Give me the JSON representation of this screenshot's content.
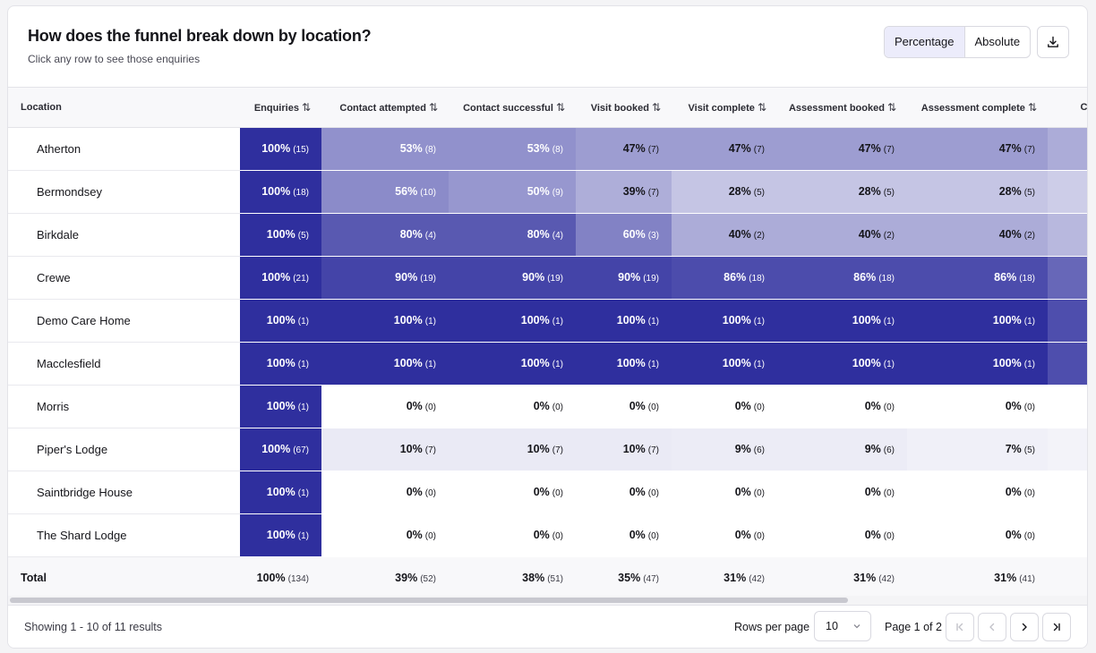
{
  "header": {
    "title": "How does the funnel break down by location?",
    "subtitle": "Click any row to see those enquiries",
    "toggle": {
      "percentage": "Percentage",
      "absolute": "Absolute",
      "active": "percentage"
    },
    "download_icon": "download-icon"
  },
  "table": {
    "columns": [
      "Location",
      "Enquiries",
      "Contact attempted",
      "Contact successful",
      "Visit booked",
      "Visit complete",
      "Assessment booked",
      "Assessment complete",
      "Contra"
    ],
    "sort_icon": "⇅",
    "rows": [
      {
        "location": "Atherton",
        "cells": [
          [
            "100%",
            "(15)"
          ],
          [
            "53%",
            "(8)"
          ],
          [
            "53%",
            "(8)"
          ],
          [
            "47%",
            "(7)"
          ],
          [
            "47%",
            "(7)"
          ],
          [
            "47%",
            "(7)"
          ],
          [
            "47%",
            "(7)"
          ]
        ]
      },
      {
        "location": "Bermondsey",
        "cells": [
          [
            "100%",
            "(18)"
          ],
          [
            "56%",
            "(10)"
          ],
          [
            "50%",
            "(9)"
          ],
          [
            "39%",
            "(7)"
          ],
          [
            "28%",
            "(5)"
          ],
          [
            "28%",
            "(5)"
          ],
          [
            "28%",
            "(5)"
          ]
        ]
      },
      {
        "location": "Birkdale",
        "cells": [
          [
            "100%",
            "(5)"
          ],
          [
            "80%",
            "(4)"
          ],
          [
            "80%",
            "(4)"
          ],
          [
            "60%",
            "(3)"
          ],
          [
            "40%",
            "(2)"
          ],
          [
            "40%",
            "(2)"
          ],
          [
            "40%",
            "(2)"
          ]
        ]
      },
      {
        "location": "Crewe",
        "cells": [
          [
            "100%",
            "(21)"
          ],
          [
            "90%",
            "(19)"
          ],
          [
            "90%",
            "(19)"
          ],
          [
            "90%",
            "(19)"
          ],
          [
            "86%",
            "(18)"
          ],
          [
            "86%",
            "(18)"
          ],
          [
            "86%",
            "(18)"
          ]
        ]
      },
      {
        "location": "Demo Care Home",
        "cells": [
          [
            "100%",
            "(1)"
          ],
          [
            "100%",
            "(1)"
          ],
          [
            "100%",
            "(1)"
          ],
          [
            "100%",
            "(1)"
          ],
          [
            "100%",
            "(1)"
          ],
          [
            "100%",
            "(1)"
          ],
          [
            "100%",
            "(1)"
          ]
        ]
      },
      {
        "location": "Macclesfield",
        "cells": [
          [
            "100%",
            "(1)"
          ],
          [
            "100%",
            "(1)"
          ],
          [
            "100%",
            "(1)"
          ],
          [
            "100%",
            "(1)"
          ],
          [
            "100%",
            "(1)"
          ],
          [
            "100%",
            "(1)"
          ],
          [
            "100%",
            "(1)"
          ]
        ]
      },
      {
        "location": "Morris",
        "cells": [
          [
            "100%",
            "(1)"
          ],
          [
            "0%",
            "(0)"
          ],
          [
            "0%",
            "(0)"
          ],
          [
            "0%",
            "(0)"
          ],
          [
            "0%",
            "(0)"
          ],
          [
            "0%",
            "(0)"
          ],
          [
            "0%",
            "(0)"
          ]
        ]
      },
      {
        "location": "Piper's Lodge",
        "cells": [
          [
            "100%",
            "(67)"
          ],
          [
            "10%",
            "(7)"
          ],
          [
            "10%",
            "(7)"
          ],
          [
            "10%",
            "(7)"
          ],
          [
            "9%",
            "(6)"
          ],
          [
            "9%",
            "(6)"
          ],
          [
            "7%",
            "(5)"
          ]
        ]
      },
      {
        "location": "Saintbridge House",
        "cells": [
          [
            "100%",
            "(1)"
          ],
          [
            "0%",
            "(0)"
          ],
          [
            "0%",
            "(0)"
          ],
          [
            "0%",
            "(0)"
          ],
          [
            "0%",
            "(0)"
          ],
          [
            "0%",
            "(0)"
          ],
          [
            "0%",
            "(0)"
          ]
        ]
      },
      {
        "location": "The Shard Lodge",
        "cells": [
          [
            "100%",
            "(1)"
          ],
          [
            "0%",
            "(0)"
          ],
          [
            "0%",
            "(0)"
          ],
          [
            "0%",
            "(0)"
          ],
          [
            "0%",
            "(0)"
          ],
          [
            "0%",
            "(0)"
          ],
          [
            "0%",
            "(0)"
          ]
        ]
      }
    ],
    "total": {
      "label": "Total",
      "cells": [
        [
          "100%",
          "(134)"
        ],
        [
          "39%",
          "(52)"
        ],
        [
          "38%",
          "(51)"
        ],
        [
          "35%",
          "(47)"
        ],
        [
          "31%",
          "(42)"
        ],
        [
          "31%",
          "(42)"
        ],
        [
          "31%",
          "(41)"
        ]
      ]
    },
    "heat_color": "#2f2f9e",
    "dark_text_color": "#ffffff",
    "light_text_color": "#15151a"
  },
  "footer": {
    "showing": "Showing 1 - 10 of 11 results",
    "rows_per_page_label": "Rows per page",
    "rows_per_page_value": "10",
    "page_label": "Page 1 of 2"
  }
}
